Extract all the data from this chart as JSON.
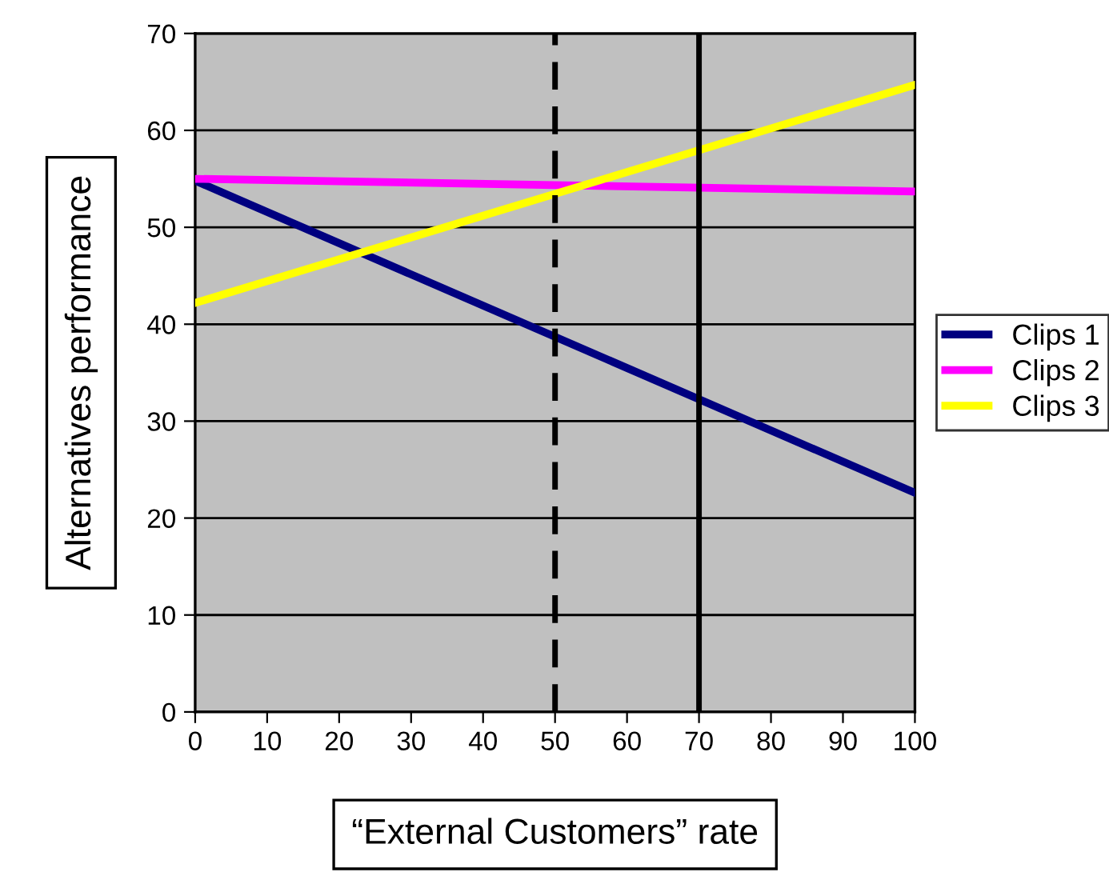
{
  "chart_data": {
    "type": "line",
    "xlabel": "“External Customers” rate",
    "ylabel": "Alternatives performance",
    "x": [
      0,
      100
    ],
    "series": [
      {
        "name": "Clips 1",
        "color": "#000080",
        "values": [
          54.8,
          22.6
        ]
      },
      {
        "name": "Clips 2",
        "color": "#ff00ff",
        "values": [
          55,
          53.7
        ]
      },
      {
        "name": "Clips 3",
        "color": "#ffff00",
        "values": [
          42.2,
          64.7
        ]
      }
    ],
    "xlim": [
      0,
      100
    ],
    "xticks": [
      0,
      10,
      20,
      30,
      40,
      50,
      60,
      70,
      80,
      90,
      100
    ],
    "ylim": [
      0,
      70
    ],
    "yticks": [
      0,
      10,
      20,
      30,
      40,
      50,
      60,
      70
    ],
    "ref_lines": [
      {
        "axis": "x",
        "value": 50,
        "label": null,
        "color": "#000000",
        "line_style": "dashed"
      },
      {
        "axis": "x",
        "value": 70,
        "label": null,
        "color": "#000000",
        "line_style": "solid"
      }
    ],
    "grid": "y",
    "legend": "right",
    "marker": "none",
    "line_style": "solid"
  }
}
